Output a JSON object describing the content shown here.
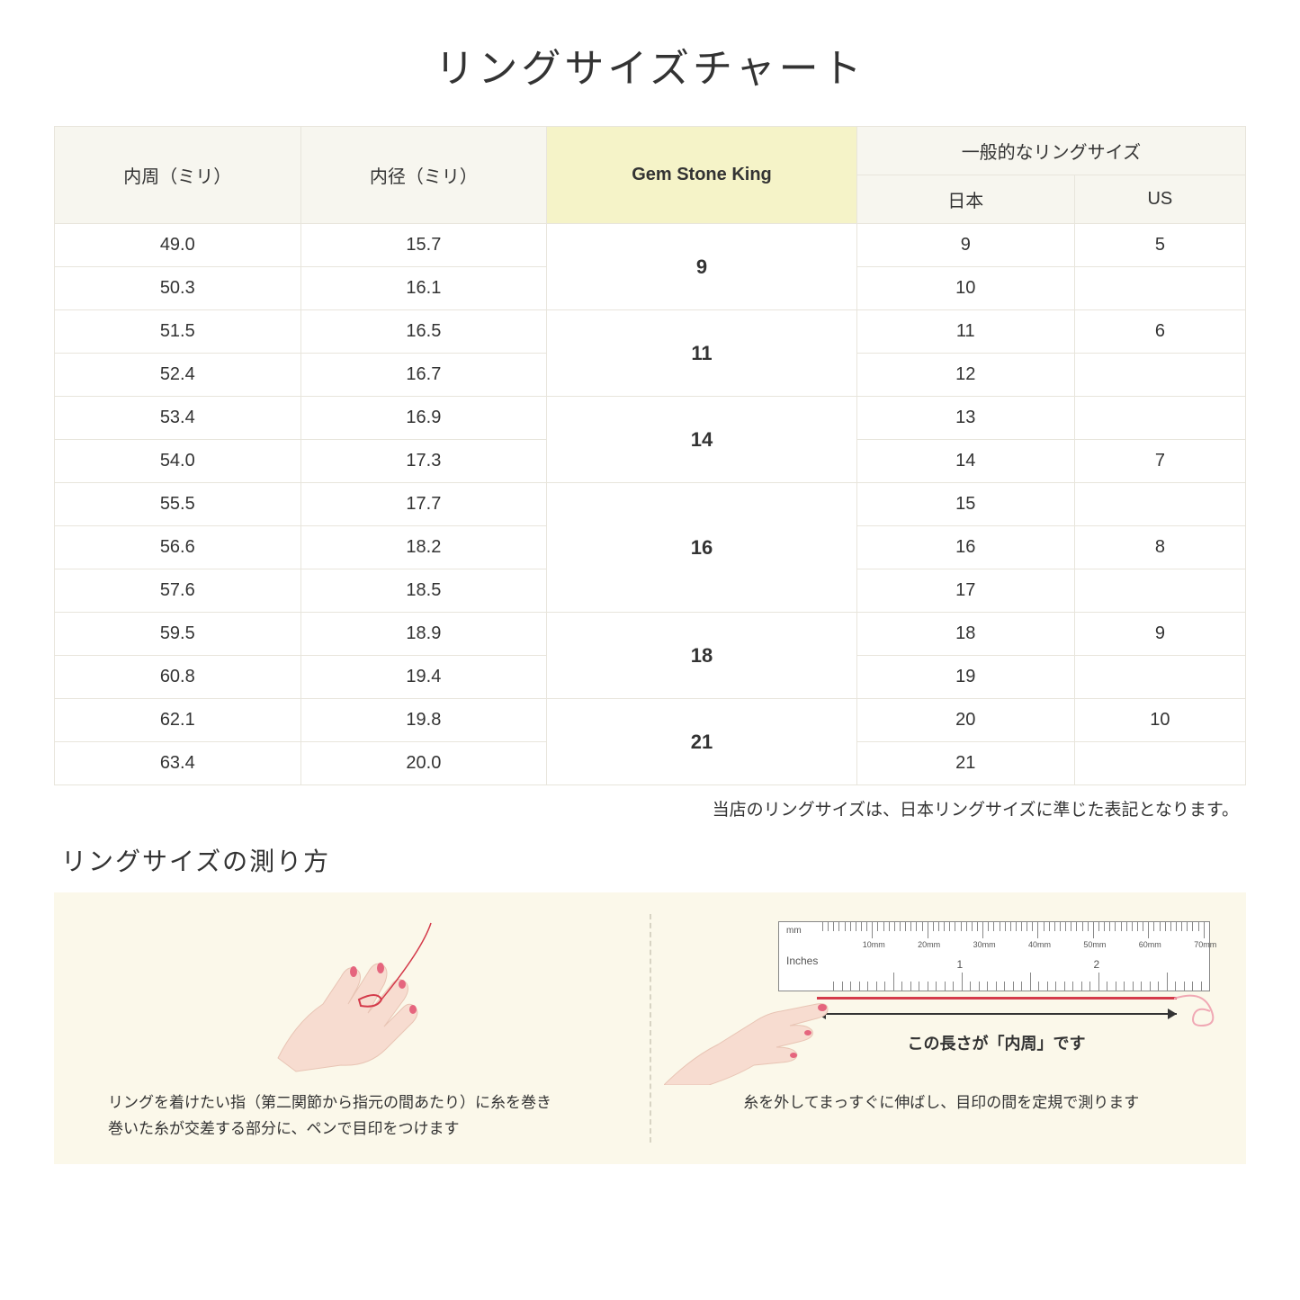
{
  "title": "リングサイズチャート",
  "table": {
    "headers": {
      "circumference": "内周（ミリ）",
      "diameter": "内径（ミリ）",
      "gsk": "Gem Stone King",
      "general_group": "一般的なリングサイズ",
      "japan": "日本",
      "us": "US"
    },
    "rows": [
      {
        "circ": "49.0",
        "diam": "15.7",
        "gsk": "9",
        "jp": "9",
        "us": "5"
      },
      {
        "circ": "50.3",
        "diam": "16.1",
        "gsk": "",
        "jp": "10",
        "us": ""
      },
      {
        "circ": "51.5",
        "diam": "16.5",
        "gsk": "11",
        "jp": "11",
        "us": "6"
      },
      {
        "circ": "52.4",
        "diam": "16.7",
        "gsk": "",
        "jp": "12",
        "us": ""
      },
      {
        "circ": "53.4",
        "diam": "16.9",
        "gsk": "14",
        "jp": "13",
        "us": ""
      },
      {
        "circ": "54.0",
        "diam": "17.3",
        "gsk": "",
        "jp": "14",
        "us": "7"
      },
      {
        "circ": "55.5",
        "diam": "17.7",
        "gsk": "16",
        "jp": "15",
        "us": ""
      },
      {
        "circ": "56.6",
        "diam": "18.2",
        "gsk": "",
        "jp": "16",
        "us": "8"
      },
      {
        "circ": "57.6",
        "diam": "18.5",
        "gsk": "",
        "jp": "17",
        "us": ""
      },
      {
        "circ": "59.5",
        "diam": "18.9",
        "gsk": "18",
        "jp": "18",
        "us": "9"
      },
      {
        "circ": "60.8",
        "diam": "19.4",
        "gsk": "",
        "jp": "19",
        "us": ""
      },
      {
        "circ": "62.1",
        "diam": "19.8",
        "gsk": "21",
        "jp": "20",
        "us": "10"
      },
      {
        "circ": "63.4",
        "diam": "20.0",
        "gsk": "",
        "jp": "21",
        "us": ""
      }
    ],
    "gsk_spans": [
      {
        "start": 0,
        "span": 2,
        "value": "9"
      },
      {
        "start": 2,
        "span": 2,
        "value": "11"
      },
      {
        "start": 4,
        "span": 2,
        "value": "14"
      },
      {
        "start": 6,
        "span": 3,
        "value": "16"
      },
      {
        "start": 9,
        "span": 2,
        "value": "18"
      },
      {
        "start": 11,
        "span": 2,
        "value": "21"
      }
    ],
    "header_bg": "#f7f6ef",
    "highlight_bg": "#f5f3c8",
    "border_color": "#e8e5dc"
  },
  "note": "当店のリングサイズは、日本リングサイズに準じた表記となります。",
  "measure_title": "リングサイズの測り方",
  "instructions": {
    "bg": "#fbf8ea",
    "step1_text": "リングを着けたい指（第二関節から指元の間あたり）に糸を巻き\n巻いた糸が交差する部分に、ペンで目印をつけます",
    "step2_text": "糸を外してまっすぐに伸ばし、目印の間を定規で測ります",
    "ruler": {
      "mm_label": "mm",
      "in_label": "Inches",
      "mm_ticks": [
        "10mm",
        "20mm",
        "30mm",
        "40mm",
        "50mm",
        "60mm",
        "70mm"
      ],
      "in_majors": [
        "1",
        "2"
      ]
    },
    "measure_label": "この長さが「内周」です",
    "hand_skin": "#f7dcd0",
    "nail_color": "#e5657e",
    "thread_color": "#d43a4a"
  }
}
